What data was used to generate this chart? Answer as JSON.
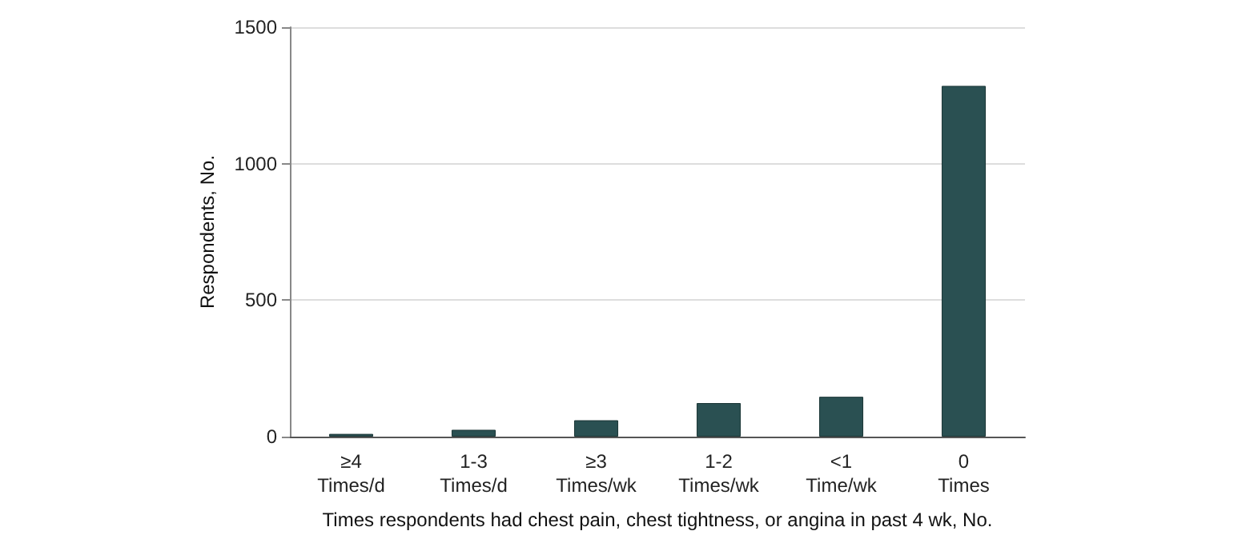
{
  "chart_data": {
    "type": "bar",
    "xlabel": "Times respondents had chest pain, chest tightness, or angina in past 4 wk, No.",
    "ylabel": "Respondents, No.",
    "categories": [
      "≥4\nTimes/d",
      "1-3\nTimes/d",
      "≥3\nTimes/wk",
      "1-2\nTimes/wk",
      "<1\nTime/wk",
      "0\nTimes"
    ],
    "values": [
      10,
      25,
      60,
      123,
      146,
      1285
    ],
    "color": "#2a5052",
    "ylim": [
      0,
      1500
    ],
    "yticks": [
      0,
      500,
      1000,
      1500
    ],
    "grid": "y"
  }
}
